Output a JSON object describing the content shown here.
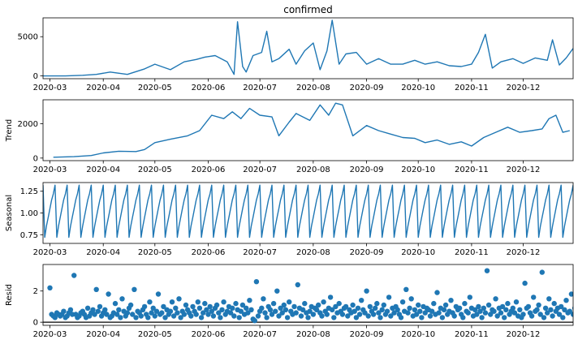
{
  "chart_data": [
    {
      "type": "line",
      "title": "confirmed",
      "ylabel": "",
      "ylim": [
        -350,
        7400
      ],
      "yticks": [
        0,
        5000
      ],
      "xlim": [
        "2020-02-26",
        "2020-12-30"
      ],
      "xticks": [
        "2020-03",
        "2020-04",
        "2020-05",
        "2020-06",
        "2020-07",
        "2020-08",
        "2020-09",
        "2020-10",
        "2020-11",
        "2020-12"
      ],
      "series": [
        {
          "x": [
            "2020-02-26",
            "2020-03-10",
            "2020-03-20",
            "2020-03-28",
            "2020-04-05",
            "2020-04-15",
            "2020-04-25",
            "2020-05-01",
            "2020-05-10",
            "2020-05-18",
            "2020-05-25",
            "2020-05-30",
            "2020-06-05",
            "2020-06-12",
            "2020-06-16",
            "2020-06-18",
            "2020-06-21",
            "2020-06-23",
            "2020-06-27",
            "2020-07-02",
            "2020-07-05",
            "2020-07-08",
            "2020-07-12",
            "2020-07-18",
            "2020-07-22",
            "2020-07-27",
            "2020-08-01",
            "2020-08-05",
            "2020-08-09",
            "2020-08-12",
            "2020-08-16",
            "2020-08-20",
            "2020-08-26",
            "2020-09-01",
            "2020-09-08",
            "2020-09-15",
            "2020-09-22",
            "2020-09-29",
            "2020-10-05",
            "2020-10-12",
            "2020-10-19",
            "2020-10-26",
            "2020-11-01",
            "2020-11-05",
            "2020-11-09",
            "2020-11-13",
            "2020-11-18",
            "2020-11-25",
            "2020-12-01",
            "2020-12-08",
            "2020-12-15",
            "2020-12-18",
            "2020-12-22",
            "2020-12-26",
            "2020-12-30"
          ],
          "y": [
            0,
            0,
            80,
            200,
            500,
            200,
            900,
            1500,
            800,
            1800,
            2100,
            2400,
            2600,
            1800,
            200,
            6900,
            1200,
            500,
            2600,
            3000,
            5700,
            1800,
            2200,
            3400,
            1500,
            3200,
            4200,
            800,
            3200,
            7100,
            1500,
            2800,
            3000,
            1500,
            2200,
            1500,
            1500,
            2000,
            1500,
            1800,
            1300,
            1200,
            1500,
            3000,
            5300,
            1000,
            1800,
            2200,
            1600,
            2300,
            2000,
            4600,
            1400,
            2300,
            3500
          ]
        }
      ]
    },
    {
      "type": "line",
      "title": "",
      "ylabel": "Trend",
      "ylim": [
        -150,
        3400
      ],
      "yticks": [
        0,
        2000
      ],
      "xlim": [
        "2020-02-26",
        "2020-12-30"
      ],
      "xticks": [
        "2020-03",
        "2020-04",
        "2020-05",
        "2020-06",
        "2020-07",
        "2020-08",
        "2020-09",
        "2020-10",
        "2020-11",
        "2020-12"
      ],
      "series": [
        {
          "x": [
            "2020-03-03",
            "2020-03-15",
            "2020-03-25",
            "2020-04-01",
            "2020-04-10",
            "2020-04-20",
            "2020-04-25",
            "2020-05-01",
            "2020-05-10",
            "2020-05-20",
            "2020-05-27",
            "2020-06-03",
            "2020-06-10",
            "2020-06-15",
            "2020-06-20",
            "2020-06-25",
            "2020-07-01",
            "2020-07-08",
            "2020-07-12",
            "2020-07-18",
            "2020-07-22",
            "2020-07-30",
            "2020-08-05",
            "2020-08-10",
            "2020-08-14",
            "2020-08-18",
            "2020-08-24",
            "2020-09-01",
            "2020-09-08",
            "2020-09-15",
            "2020-09-22",
            "2020-09-29",
            "2020-10-05",
            "2020-10-12",
            "2020-10-19",
            "2020-10-26",
            "2020-11-01",
            "2020-11-08",
            "2020-11-15",
            "2020-11-22",
            "2020-11-29",
            "2020-12-06",
            "2020-12-12",
            "2020-12-16",
            "2020-12-20",
            "2020-12-24",
            "2020-12-28"
          ],
          "y": [
            50,
            80,
            150,
            300,
            400,
            380,
            500,
            900,
            1100,
            1300,
            1600,
            2500,
            2300,
            2700,
            2300,
            2900,
            2500,
            2400,
            1300,
            2100,
            2600,
            2200,
            3100,
            2500,
            3200,
            3100,
            1300,
            1900,
            1600,
            1400,
            1200,
            1150,
            900,
            1050,
            800,
            950,
            700,
            1200,
            1500,
            1800,
            1500,
            1600,
            1700,
            2300,
            2500,
            1500,
            1600
          ]
        }
      ]
    },
    {
      "type": "line",
      "title": "",
      "ylabel": "Seasonal",
      "ylim": [
        0.65,
        1.35
      ],
      "yticks": [
        0.75,
        1.0,
        1.25
      ],
      "xlim": [
        "2020-02-26",
        "2020-12-30"
      ],
      "xticks": [
        "2020-03",
        "2020-04",
        "2020-05",
        "2020-06",
        "2020-07",
        "2020-08",
        "2020-09",
        "2020-10",
        "2020-11",
        "2020-12"
      ],
      "series": [
        {
          "start": "2020-02-26",
          "period_days": 7,
          "pattern": [
            1.32,
            0.72,
            0.85,
            0.95,
            1.05,
            1.15,
            1.22
          ]
        }
      ]
    },
    {
      "type": "scatter",
      "title": "",
      "ylabel": "Resid",
      "ylim": [
        -0.2,
        3.7
      ],
      "yticks": [
        0,
        2
      ],
      "baseline": 0,
      "xlim": [
        "2020-02-26",
        "2020-12-30"
      ],
      "xticks": [
        "2020-03",
        "2020-04",
        "2020-05",
        "2020-06",
        "2020-07",
        "2020-08",
        "2020-09",
        "2020-10",
        "2020-11",
        "2020-12"
      ],
      "series": [
        {
          "start": "2020-03-01",
          "y": [
            2.2,
            0.5,
            0.4,
            0.3,
            0.6,
            0.5,
            0.4,
            0.5,
            0.7,
            0.3,
            0.4,
            0.6,
            0.8,
            0.5,
            3.0,
            0.5,
            0.3,
            0.4,
            0.6,
            0.7,
            0.5,
            0.3,
            0.9,
            0.4,
            0.6,
            0.8,
            0.5,
            2.1,
            0.7,
            1.0,
            0.4,
            0.6,
            0.8,
            0.5,
            1.8,
            0.3,
            0.4,
            0.6,
            1.2,
            0.5,
            0.8,
            0.3,
            1.5,
            0.7,
            0.4,
            0.6,
            0.9,
            1.1,
            0.5,
            2.1,
            0.3,
            0.7,
            0.6,
            0.4,
            0.8,
            1.0,
            0.5,
            0.3,
            1.3,
            0.6,
            0.9,
            0.4,
            0.7,
            1.8,
            0.5,
            0.6,
            1.0,
            0.3,
            0.8,
            0.5,
            0.7,
            1.3,
            0.4,
            0.9,
            0.6,
            1.5,
            0.3,
            0.7,
            0.5,
            1.1,
            0.8,
            0.6,
            0.4,
            1.0,
            0.7,
            0.5,
            1.3,
            0.9,
            0.3,
            0.6,
            1.2,
            0.8,
            0.5,
            1.0,
            0.7,
            0.4,
            0.9,
            1.1,
            0.6,
            0.3,
            0.8,
            1.3,
            0.5,
            0.7,
            1.0,
            0.6,
            0.9,
            0.4,
            1.2,
            0.8,
            0.3,
            0.7,
            1.1,
            0.5,
            0.9,
            0.6,
            1.4,
            0.8,
            0.2,
            0.1,
            2.6,
            0.4,
            0.7,
            0.9,
            1.5,
            0.6,
            0.3,
            1.0,
            0.8,
            0.5,
            1.2,
            0.7,
            2.0,
            0.4,
            0.9,
            0.6,
            1.1,
            0.8,
            0.3,
            1.3,
            0.7,
            0.5,
            1.0,
            0.6,
            2.4,
            0.9,
            0.4,
            0.8,
            1.2,
            0.6,
            0.3,
            0.7,
            1.0,
            0.5,
            0.9,
            0.8,
            1.1,
            0.6,
            0.4,
            1.3,
            0.7,
            0.5,
            0.9,
            1.6,
            0.8,
            0.3,
            1.0,
            0.6,
            1.2,
            0.7,
            0.5,
            0.9,
            1.0,
            0.4,
            0.8,
            0.6,
            1.1,
            0.7,
            0.3,
            0.9,
            0.5,
            1.4,
            0.8,
            0.6,
            2.0,
            0.4,
            1.0,
            0.7,
            0.5,
            0.9,
            1.2,
            0.6,
            0.3,
            0.8,
            1.1,
            0.5,
            0.7,
            1.6,
            0.4,
            0.9,
            0.6,
            1.0,
            0.8,
            0.5,
            0.3,
            1.3,
            0.7,
            2.1,
            0.6,
            0.9,
            1.5,
            0.4,
            0.8,
            0.5,
            1.1,
            0.7,
            0.3,
            1.0,
            0.6,
            0.9,
            0.8,
            0.4,
            0.7,
            1.2,
            0.5,
            1.9,
            0.6,
            0.9,
            0.3,
            0.8,
            1.1,
            0.5,
            0.7,
            1.4,
            0.6,
            0.4,
            1.0,
            0.8,
            0.9,
            0.5,
            0.3,
            1.2,
            0.7,
            0.6,
            1.6,
            0.9,
            0.4,
            0.8,
            0.5,
            1.0,
            0.7,
            0.3,
            0.9,
            0.6,
            3.3,
            1.1,
            0.5,
            0.8,
            0.7,
            1.5,
            0.4,
            0.9,
            0.6,
            1.0,
            0.3,
            0.8,
            1.2,
            0.5,
            0.7,
            0.9,
            0.6,
            1.3,
            0.4,
            0.8,
            0.3,
            0.5,
            2.5,
            0.9,
            1.0,
            0.6,
            0.4,
            1.6,
            0.7,
            0.8,
            1.1,
            0.5,
            3.2,
            0.3,
            0.9,
            0.6,
            1.5,
            0.8,
            0.4,
            1.2,
            0.7,
            0.9,
            0.5,
            1.0,
            0.3,
            0.8,
            1.4,
            0.6,
            0.7,
            1.8,
            0.5,
            0.9,
            2.1,
            0.4,
            0.8,
            0.6,
            0.3,
            1.0,
            0.7,
            0.5,
            0.2
          ]
        }
      ]
    }
  ]
}
